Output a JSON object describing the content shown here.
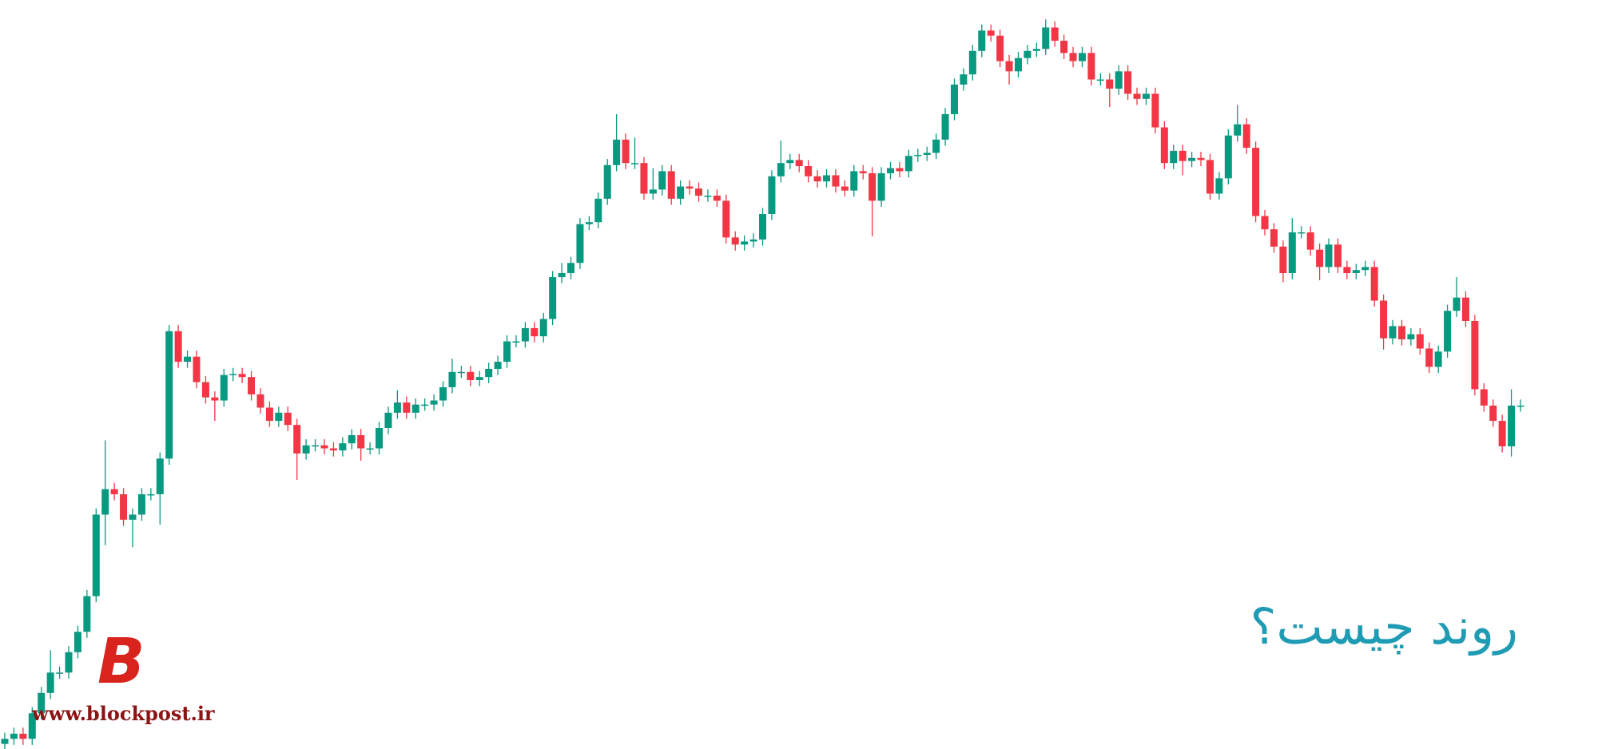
{
  "chart_data": {
    "type": "candlestick",
    "title": "روند چیست؟",
    "up_color": "#089981",
    "down_color": "#f23645",
    "title_color": "#1f9bb4",
    "ylim": [
      0,
      735
    ],
    "open": [
      5,
      10,
      15,
      10,
      35,
      55,
      75,
      75,
      95,
      115,
      150,
      230,
      255,
      250,
      225,
      230,
      250,
      250,
      285,
      410,
      380,
      385,
      360,
      345,
      342,
      367,
      368,
      365,
      348,
      335,
      322,
      330,
      318,
      290,
      298,
      298,
      295,
      293,
      300,
      308,
      295,
      295,
      315,
      330,
      340,
      330,
      338,
      338,
      342,
      355,
      370,
      370,
      362,
      365,
      373,
      380,
      400,
      400,
      413,
      405,
      422,
      463,
      467,
      477,
      515,
      517,
      540,
      573,
      598,
      575,
      575,
      545,
      549,
      567,
      540,
      552,
      550,
      543,
      543,
      538,
      502,
      495,
      498,
      500,
      525,
      562,
      575,
      578,
      572,
      562,
      557,
      563,
      552,
      548,
      567,
      565,
      538,
      565,
      570,
      567,
      582,
      583,
      585,
      598,
      623,
      652,
      662,
      685,
      705,
      700,
      675,
      665,
      678,
      685,
      687,
      708,
      695,
      683,
      675,
      683,
      657,
      657,
      648,
      665,
      643,
      638,
      643,
      610,
      575,
      587,
      577,
      580,
      578,
      545,
      560,
      602,
      613,
      590,
      523,
      510,
      493,
      467,
      507,
      507,
      490,
      473,
      495,
      473,
      467,
      470,
      473,
      440,
      403,
      415,
      402,
      407,
      393,
      375,
      390,
      430,
      443,
      420,
      353,
      337,
      322,
      297,
      337
    ],
    "high": [
      16,
      21,
      21,
      41,
      61,
      97,
      81,
      101,
      121,
      156,
      236,
      303,
      261,
      256,
      236,
      256,
      256,
      291,
      416,
      416,
      391,
      391,
      366,
      351,
      373,
      374,
      374,
      371,
      354,
      341,
      336,
      336,
      324,
      304,
      304,
      304,
      301,
      306,
      314,
      314,
      301,
      321,
      336,
      352,
      346,
      344,
      344,
      348,
      361,
      383,
      376,
      376,
      371,
      379,
      386,
      406,
      406,
      419,
      419,
      428,
      469,
      477,
      483,
      521,
      523,
      546,
      579,
      623,
      604,
      600,
      581,
      570,
      573,
      573,
      558,
      558,
      556,
      549,
      549,
      544,
      508,
      504,
      506,
      531,
      568,
      597,
      584,
      584,
      578,
      568,
      569,
      569,
      558,
      573,
      573,
      571,
      571,
      576,
      576,
      588,
      589,
      591,
      604,
      629,
      658,
      668,
      691,
      711,
      711,
      706,
      681,
      684,
      691,
      693,
      716,
      714,
      701,
      689,
      689,
      689,
      663,
      663,
      671,
      671,
      649,
      649,
      649,
      616,
      593,
      593,
      586,
      586,
      584,
      566,
      608,
      632,
      619,
      596,
      529,
      516,
      499,
      521,
      513,
      513,
      496,
      501,
      501,
      479,
      476,
      479,
      479,
      446,
      421,
      421,
      413,
      413,
      399,
      396,
      436,
      463,
      449,
      426,
      359,
      343,
      328,
      353,
      343
    ],
    "low": [
      0,
      4,
      4,
      4,
      29,
      49,
      69,
      69,
      89,
      109,
      144,
      200,
      244,
      219,
      198,
      224,
      244,
      220,
      279,
      374,
      374,
      354,
      339,
      322,
      336,
      361,
      359,
      342,
      329,
      316,
      316,
      312,
      264,
      284,
      292,
      289,
      287,
      287,
      294,
      283,
      289,
      289,
      309,
      324,
      324,
      324,
      332,
      332,
      336,
      349,
      364,
      356,
      356,
      359,
      367,
      374,
      394,
      394,
      399,
      399,
      416,
      457,
      461,
      471,
      509,
      511,
      534,
      567,
      569,
      569,
      539,
      539,
      543,
      534,
      534,
      544,
      537,
      537,
      532,
      496,
      489,
      489,
      492,
      494,
      519,
      556,
      569,
      566,
      556,
      551,
      551,
      546,
      542,
      542,
      559,
      503,
      532,
      559,
      561,
      561,
      576,
      577,
      579,
      592,
      617,
      646,
      656,
      679,
      694,
      669,
      652,
      659,
      672,
      679,
      681,
      689,
      677,
      669,
      669,
      651,
      651,
      630,
      642,
      637,
      632,
      632,
      604,
      569,
      569,
      563,
      571,
      572,
      539,
      539,
      554,
      596,
      584,
      517,
      504,
      487,
      458,
      461,
      501,
      484,
      460,
      467,
      467,
      461,
      461,
      464,
      434,
      392,
      397,
      396,
      396,
      387,
      369,
      369,
      384,
      424,
      414,
      347,
      331,
      316,
      291,
      287,
      331
    ],
    "close": [
      10,
      15,
      10,
      35,
      55,
      75,
      75,
      95,
      115,
      150,
      230,
      255,
      250,
      225,
      230,
      250,
      250,
      285,
      410,
      380,
      385,
      360,
      345,
      342,
      367,
      368,
      365,
      348,
      335,
      322,
      330,
      318,
      290,
      298,
      298,
      295,
      293,
      300,
      308,
      295,
      295,
      315,
      330,
      340,
      330,
      338,
      338,
      342,
      355,
      370,
      370,
      362,
      365,
      373,
      380,
      400,
      400,
      413,
      405,
      422,
      463,
      467,
      477,
      515,
      517,
      540,
      573,
      598,
      575,
      575,
      545,
      549,
      567,
      540,
      552,
      550,
      543,
      543,
      538,
      502,
      495,
      498,
      500,
      525,
      562,
      575,
      578,
      572,
      562,
      557,
      563,
      552,
      548,
      567,
      565,
      538,
      565,
      570,
      567,
      582,
      583,
      585,
      598,
      623,
      652,
      662,
      685,
      705,
      700,
      675,
      665,
      678,
      685,
      687,
      708,
      695,
      683,
      675,
      683,
      657,
      657,
      648,
      665,
      643,
      638,
      643,
      610,
      575,
      587,
      577,
      580,
      578,
      545,
      560,
      602,
      613,
      590,
      523,
      510,
      493,
      467,
      507,
      507,
      490,
      473,
      495,
      473,
      467,
      470,
      473,
      440,
      403,
      415,
      402,
      407,
      393,
      375,
      390,
      430,
      443,
      420,
      353,
      337,
      322,
      297,
      337,
      337
    ]
  },
  "watermark": {
    "letter": "B",
    "url": "www.blockpost.ir"
  }
}
